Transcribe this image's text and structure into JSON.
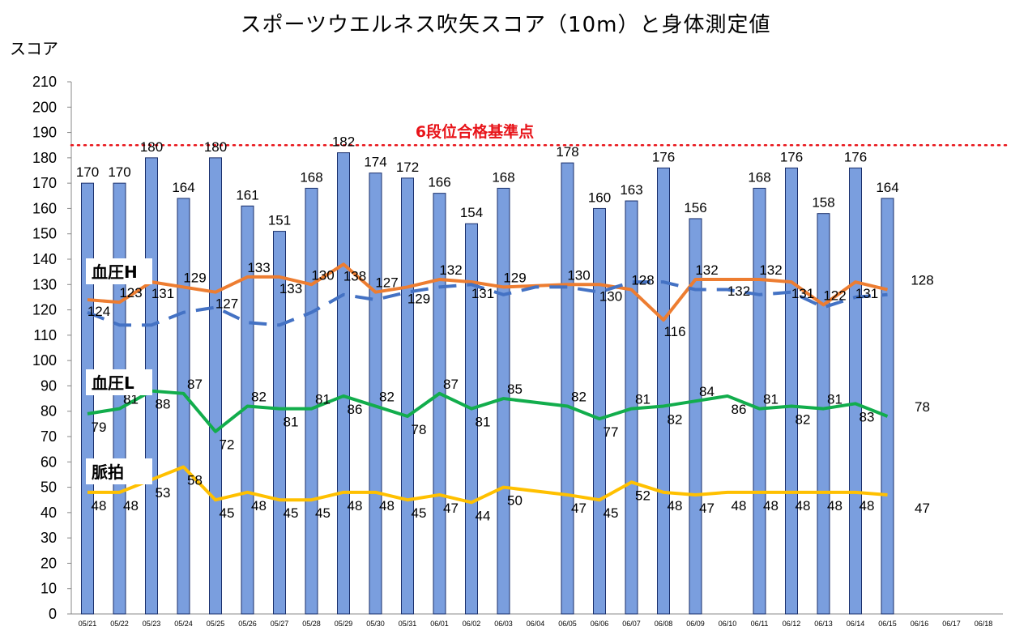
{
  "title": "スポーツウエルネス吹矢スコア（10m）と身体測定値",
  "ylabel": "スコア",
  "reference_line": {
    "label": "6段位合格基準点",
    "value": 185,
    "color": "#e8141a"
  },
  "colors": {
    "bars": "#7a9ede",
    "bar_border": "#1a2f6b",
    "bp_high": "#ed7d31",
    "bp_high_trend": "#4472c4",
    "bp_low": "#12ad4c",
    "pulse": "#ffc000"
  },
  "chart_data": {
    "type": "bar",
    "title": "スポーツウエルネス吹矢スコア（10m）と身体測定値",
    "ylabel": "スコア",
    "xlabel": "",
    "ylim": [
      0,
      210
    ],
    "yticks": [
      0,
      10,
      20,
      30,
      40,
      50,
      60,
      70,
      80,
      90,
      100,
      110,
      120,
      130,
      140,
      150,
      160,
      170,
      180,
      190,
      200,
      210
    ],
    "grid": false,
    "categories": [
      "05/21",
      "05/22",
      "05/23",
      "05/24",
      "05/25",
      "05/26",
      "05/27",
      "05/28",
      "05/29",
      "05/30",
      "05/31",
      "06/01",
      "06/02",
      "06/03",
      "06/04",
      "06/05",
      "06/06",
      "06/07",
      "06/08",
      "06/09",
      "06/10",
      "06/11",
      "06/12",
      "06/13",
      "06/14",
      "06/15",
      "06/16",
      "06/17",
      "06/18"
    ],
    "series": [
      {
        "type": "bar",
        "values": [
          170,
          170,
          180,
          164,
          180,
          161,
          151,
          168,
          182,
          174,
          172,
          166,
          154,
          168,
          null,
          178,
          160,
          163,
          176,
          156,
          null,
          168,
          176,
          158,
          176,
          164,
          null,
          null,
          null
        ]
      },
      {
        "name": "血圧H",
        "type": "line",
        "values": [
          124,
          123,
          131,
          129,
          127,
          133,
          133,
          130,
          138,
          127,
          129,
          132,
          131,
          129,
          null,
          130,
          130,
          128,
          116,
          132,
          132,
          132,
          131,
          122,
          131,
          128,
          null,
          null,
          null
        ]
      },
      {
        "type": "line",
        "style": "dashed",
        "values": [
          119,
          114,
          114,
          119,
          121,
          115,
          114,
          119,
          126,
          124,
          127,
          129,
          130,
          126,
          129,
          129,
          127,
          131,
          131,
          128,
          128,
          126,
          127,
          121,
          125,
          126,
          null,
          null,
          null
        ]
      },
      {
        "name": "血圧L",
        "type": "line",
        "values": [
          79,
          81,
          88,
          87,
          72,
          82,
          81,
          81,
          86,
          82,
          78,
          87,
          81,
          85,
          null,
          82,
          77,
          81,
          82,
          84,
          86,
          81,
          82,
          81,
          83,
          78,
          null,
          null,
          null
        ]
      },
      {
        "name": "脈拍",
        "type": "line",
        "values": [
          48,
          48,
          53,
          58,
          45,
          48,
          45,
          45,
          48,
          48,
          45,
          47,
          44,
          50,
          null,
          47,
          45,
          52,
          48,
          47,
          48,
          48,
          48,
          48,
          48,
          47,
          null,
          null,
          null
        ]
      }
    ]
  }
}
